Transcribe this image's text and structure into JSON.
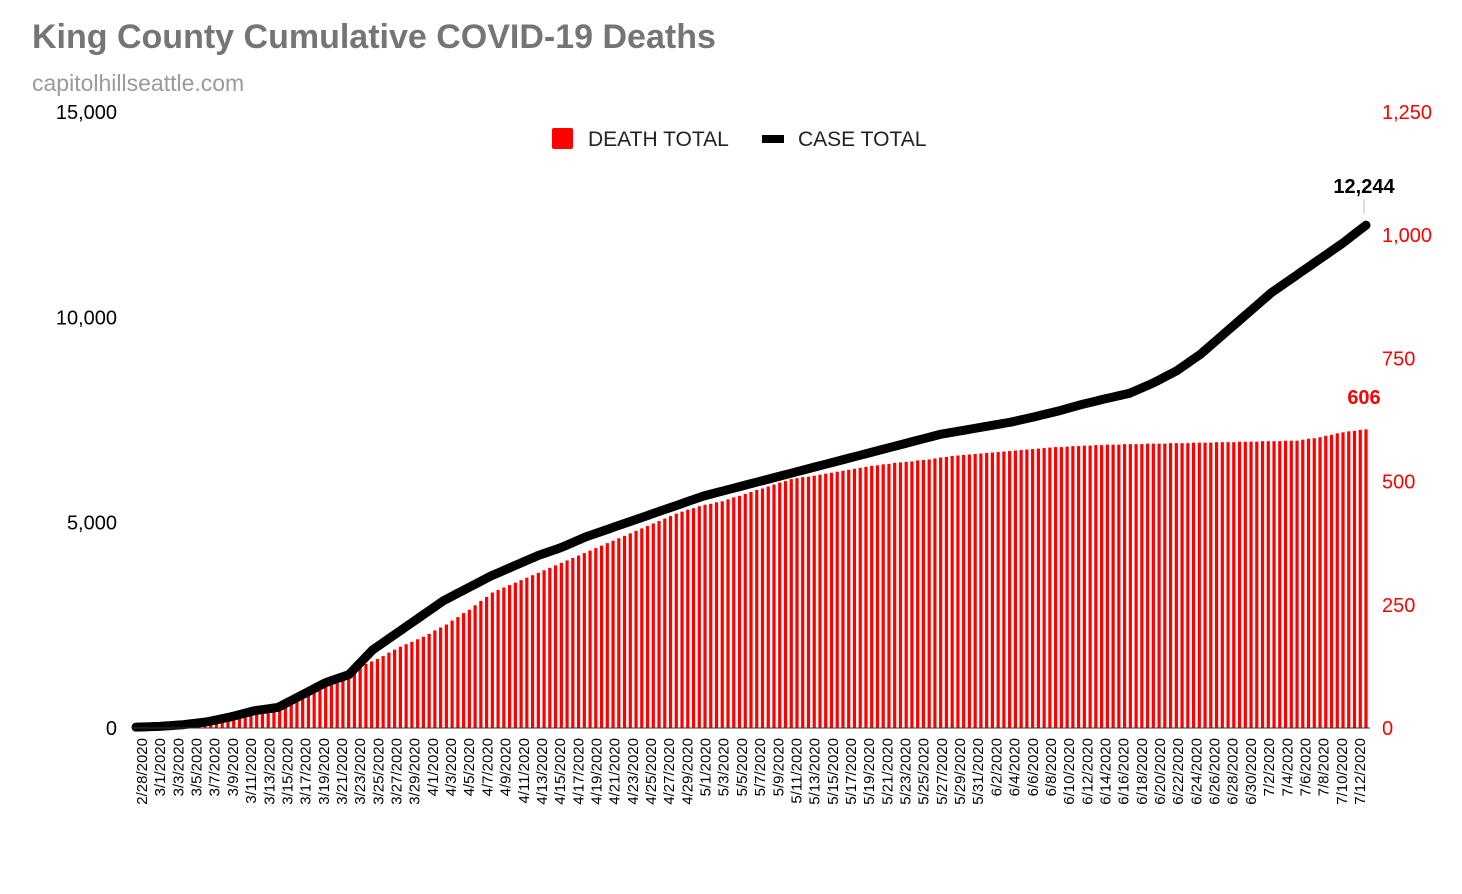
{
  "header": {
    "title": "King County Cumulative COVID-19 Deaths",
    "subtitle": "capitolhillseattle.com"
  },
  "chart_data": {
    "type": "bar+line",
    "colors": {
      "deaths": "#ff0000",
      "cases": "#000000"
    },
    "legend": {
      "position": "top-center",
      "items": [
        {
          "name": "DEATH TOTAL",
          "color": "#ff0000"
        },
        {
          "name": "CASE TOTAL",
          "color": "#000000"
        }
      ]
    },
    "left_axis": {
      "min": 0,
      "max": 15000,
      "ticks": [
        "0",
        "5,000",
        "10,000",
        "15,000"
      ],
      "tick_values": [
        0,
        5000,
        10000,
        15000
      ],
      "color": "#000000"
    },
    "right_axis": {
      "min": 0,
      "max": 1250,
      "ticks": [
        "0",
        "250",
        "500",
        "750",
        "1,000",
        "1,250"
      ],
      "tick_values": [
        0,
        250,
        500,
        750,
        1000,
        1250
      ],
      "color": "#ff0000"
    },
    "x_labels": [
      "2/28/2020",
      "3/1/2020",
      "3/3/2020",
      "3/5/2020",
      "3/7/2020",
      "3/9/2020",
      "3/11/2020",
      "3/13/2020",
      "3/15/2020",
      "3/17/2020",
      "3/19/2020",
      "3/21/2020",
      "3/23/2020",
      "3/25/2020",
      "3/27/2020",
      "3/29/2020",
      "4/1/2020",
      "4/3/2020",
      "4/5/2020",
      "4/7/2020",
      "4/9/2020",
      "4/11/2020",
      "4/13/2020",
      "4/15/2020",
      "4/17/2020",
      "4/19/2020",
      "4/21/2020",
      "4/23/2020",
      "4/25/2020",
      "4/27/2020",
      "4/29/2020",
      "5/1/2020",
      "5/3/2020",
      "5/5/2020",
      "5/7/2020",
      "5/9/2020",
      "5/11/2020",
      "5/13/2020",
      "5/15/2020",
      "5/17/2020",
      "5/19/2020",
      "5/21/2020",
      "5/23/2020",
      "5/25/2020",
      "5/27/2020",
      "5/29/2020",
      "5/31/2020",
      "6/2/2020",
      "6/4/2020",
      "6/6/2020",
      "6/8/2020",
      "6/10/2020",
      "6/12/2020",
      "6/14/2020",
      "6/16/2020",
      "6/18/2020",
      "6/20/2020",
      "6/22/2020",
      "6/24/2020",
      "6/26/2020",
      "6/28/2020",
      "6/30/2020",
      "7/2/2020",
      "7/4/2020",
      "7/6/2020",
      "7/8/2020",
      "7/10/2020",
      "7/12/2020"
    ],
    "death_keypoints": [
      [
        0,
        0
      ],
      [
        8,
        1
      ],
      [
        10,
        4
      ],
      [
        14,
        10
      ],
      [
        18,
        20
      ],
      [
        22,
        30
      ],
      [
        26,
        45
      ],
      [
        30,
        75
      ],
      [
        34,
        95
      ],
      [
        38,
        120
      ],
      [
        42,
        140
      ],
      [
        46,
        165
      ],
      [
        50,
        185
      ],
      [
        54,
        210
      ],
      [
        58,
        240
      ],
      [
        62,
        275
      ],
      [
        66,
        295
      ],
      [
        70,
        315
      ],
      [
        74,
        335
      ],
      [
        78,
        355
      ],
      [
        82,
        375
      ],
      [
        86,
        395
      ],
      [
        90,
        415
      ],
      [
        94,
        435
      ],
      [
        98,
        450
      ],
      [
        102,
        460
      ],
      [
        106,
        475
      ],
      [
        110,
        490
      ],
      [
        114,
        505
      ],
      [
        118,
        512
      ],
      [
        122,
        520
      ],
      [
        126,
        528
      ],
      [
        130,
        535
      ],
      [
        134,
        540
      ],
      [
        138,
        545
      ],
      [
        142,
        552
      ],
      [
        146,
        556
      ],
      [
        150,
        560
      ],
      [
        154,
        564
      ],
      [
        158,
        568
      ],
      [
        162,
        571
      ],
      [
        166,
        573
      ],
      [
        170,
        575
      ],
      [
        174,
        576
      ],
      [
        178,
        577
      ],
      [
        182,
        578
      ],
      [
        186,
        579
      ],
      [
        190,
        580
      ],
      [
        194,
        581
      ],
      [
        198,
        582
      ],
      [
        202,
        583
      ],
      [
        206,
        590
      ],
      [
        210,
        600
      ],
      [
        214,
        606
      ]
    ],
    "case_keypoints": [
      [
        0,
        20
      ],
      [
        5,
        40
      ],
      [
        10,
        80
      ],
      [
        15,
        150
      ],
      [
        20,
        270
      ],
      [
        25,
        420
      ],
      [
        30,
        500
      ],
      [
        35,
        800
      ],
      [
        40,
        1100
      ],
      [
        45,
        1300
      ],
      [
        50,
        1900
      ],
      [
        55,
        2300
      ],
      [
        60,
        2700
      ],
      [
        65,
        3100
      ],
      [
        70,
        3400
      ],
      [
        75,
        3700
      ],
      [
        80,
        3950
      ],
      [
        85,
        4200
      ],
      [
        90,
        4400
      ],
      [
        95,
        4650
      ],
      [
        100,
        4850
      ],
      [
        105,
        5050
      ],
      [
        110,
        5250
      ],
      [
        115,
        5450
      ],
      [
        120,
        5650
      ],
      [
        125,
        5800
      ],
      [
        130,
        5950
      ],
      [
        135,
        6100
      ],
      [
        140,
        6250
      ],
      [
        145,
        6400
      ],
      [
        150,
        6550
      ],
      [
        155,
        6700
      ],
      [
        160,
        6850
      ],
      [
        165,
        7000
      ],
      [
        170,
        7150
      ],
      [
        175,
        7250
      ],
      [
        180,
        7350
      ],
      [
        185,
        7450
      ],
      [
        190,
        7580
      ],
      [
        195,
        7720
      ],
      [
        200,
        7880
      ],
      [
        205,
        8020
      ],
      [
        210,
        8150
      ],
      [
        215,
        8400
      ],
      [
        220,
        8700
      ],
      [
        225,
        9100
      ],
      [
        230,
        9600
      ],
      [
        235,
        10100
      ],
      [
        240,
        10600
      ],
      [
        245,
        11000
      ],
      [
        250,
        11400
      ],
      [
        255,
        11800
      ],
      [
        260,
        12244
      ]
    ],
    "callouts": [
      {
        "series": "cases",
        "text": "12,244",
        "value": 12244
      },
      {
        "series": "deaths",
        "text": "606",
        "value": 606
      }
    ]
  }
}
